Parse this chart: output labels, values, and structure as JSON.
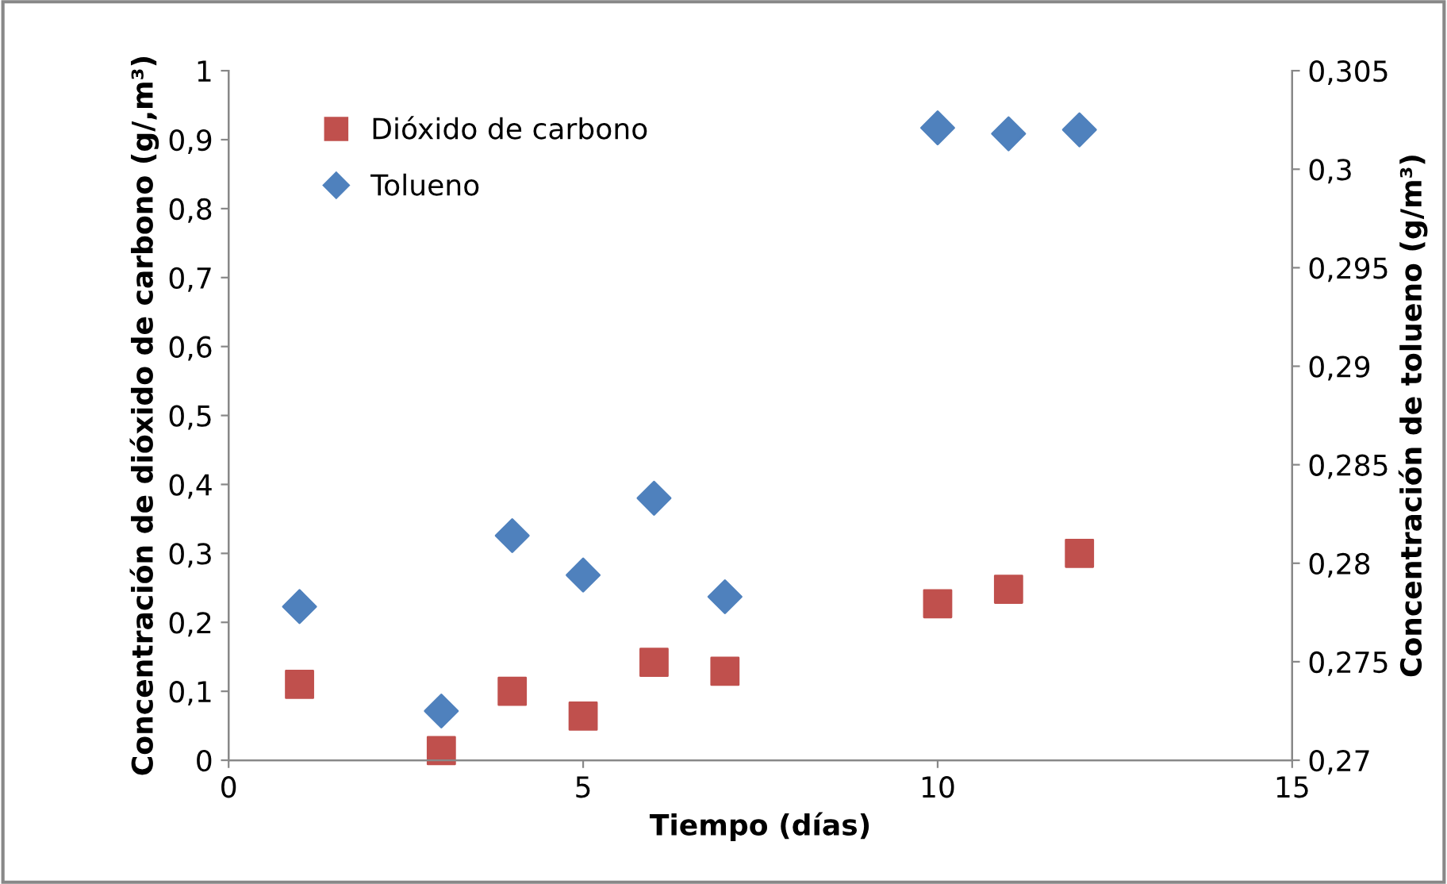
{
  "chart_data": {
    "type": "scatter",
    "xlabel": "Tiempo (días)",
    "ylabel": "Concentración de dióxido de carbono (g/,m³)",
    "y2label": "Concentración de tolueno (g/m³)",
    "series": [
      {
        "name": "Dióxido de carbono",
        "color": "#c0504d",
        "marker": "square",
        "x": [
          1,
          3,
          4,
          5,
          6,
          7,
          10,
          11,
          12
        ],
        "values": [
          0.11,
          0.014,
          0.1,
          0.064,
          0.142,
          0.129,
          0.227,
          0.248,
          0.3
        ]
      },
      {
        "name": "Tolueno",
        "color": "#4f81bd",
        "marker": "diamond",
        "axis": "y2",
        "x": [
          1,
          3,
          4,
          5,
          6,
          7,
          10,
          11,
          12
        ],
        "values": [
          0.2778,
          0.2725,
          0.2814,
          0.2794,
          0.2833,
          0.2783,
          0.3021,
          0.3018,
          0.302
        ]
      }
    ],
    "xlim": [
      0,
      15
    ],
    "xticks": [
      0,
      5,
      10,
      15
    ],
    "ylim": [
      0,
      1
    ],
    "yticks": [
      {
        "value": 0,
        "label": "0"
      },
      {
        "value": 0.1,
        "label": "0,1"
      },
      {
        "value": 0.2,
        "label": "0,2"
      },
      {
        "value": 0.3,
        "label": "0,3"
      },
      {
        "value": 0.4,
        "label": "0,4"
      },
      {
        "value": 0.5,
        "label": "0,5"
      },
      {
        "value": 0.6,
        "label": "0,6"
      },
      {
        "value": 0.7,
        "label": "0,7"
      },
      {
        "value": 0.8,
        "label": "0,8"
      },
      {
        "value": 0.9,
        "label": "0,9"
      },
      {
        "value": 1,
        "label": "1"
      }
    ],
    "y2lim": [
      0.27,
      0.305
    ],
    "y2ticks": [
      {
        "value": 0.27,
        "label": "0,27"
      },
      {
        "value": 0.275,
        "label": "0,275"
      },
      {
        "value": 0.28,
        "label": "0,28"
      },
      {
        "value": 0.285,
        "label": "0,285"
      },
      {
        "value": 0.29,
        "label": "0,29"
      },
      {
        "value": 0.295,
        "label": "0,295"
      },
      {
        "value": 0.3,
        "label": "0,3"
      },
      {
        "value": 0.305,
        "label": "0,305"
      }
    ],
    "grid": false,
    "legend": "top left"
  }
}
